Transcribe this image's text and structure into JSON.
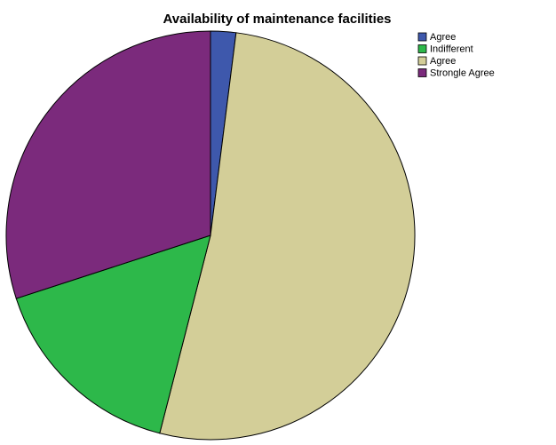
{
  "chart_data": {
    "type": "pie",
    "title": "Availability of maintenance facilities",
    "categories": [
      "Agree",
      "Indifferent",
      "Agree",
      "Strongle Agree"
    ],
    "values": [
      2,
      16,
      52,
      30
    ],
    "colors": [
      "#3e58ac",
      "#2db84a",
      "#d3ce98",
      "#7b2a7c"
    ],
    "slice_order": [
      0,
      2,
      1,
      3
    ],
    "legend": "top-right"
  }
}
